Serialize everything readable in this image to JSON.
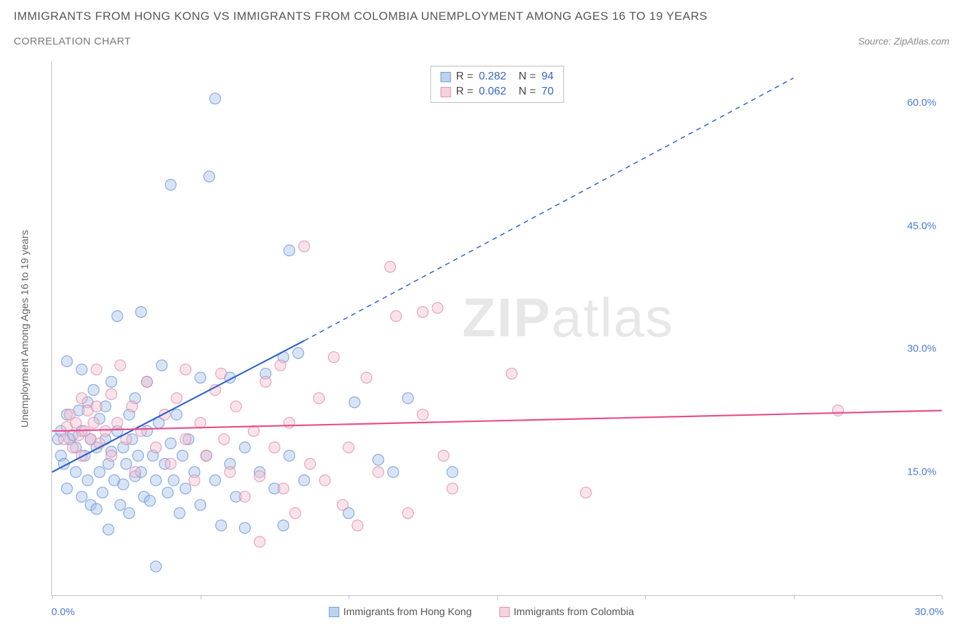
{
  "title": "IMMIGRANTS FROM HONG KONG VS IMMIGRANTS FROM COLOMBIA UNEMPLOYMENT AMONG AGES 16 TO 19 YEARS",
  "subtitle": "CORRELATION CHART",
  "source_prefix": "Source: ",
  "source_name": "ZipAtlas.com",
  "y_axis_label": "Unemployment Among Ages 16 to 19 years",
  "watermark_bold": "ZIP",
  "watermark_rest": "atlas",
  "chart": {
    "type": "scatter",
    "xlim": [
      0,
      30
    ],
    "ylim": [
      0,
      65
    ],
    "x_ticks": [
      0,
      5,
      10,
      15,
      20,
      25,
      30
    ],
    "x_tick_labels_shown": {
      "0": "0.0%",
      "30": "30.0%"
    },
    "y_ticks": [
      15,
      30,
      45,
      60
    ],
    "y_tick_labels": [
      "15.0%",
      "30.0%",
      "45.0%",
      "60.0%"
    ],
    "background_color": "#ffffff",
    "axis_color": "#bfbfbf",
    "marker_radius": 8,
    "marker_opacity": 0.45,
    "series": [
      {
        "name": "Immigrants from Hong Kong",
        "color_fill": "#a9c4ea",
        "color_stroke": "#5b8bd4",
        "swatch_fill": "#bcd2ef",
        "swatch_border": "#6f9cd9",
        "R": "0.282",
        "N": "94",
        "trend": {
          "solid": {
            "x1": 0,
            "y1": 15,
            "x2": 8.5,
            "y2": 31
          },
          "dashed": {
            "x1": 8.5,
            "y1": 31,
            "x2": 25,
            "y2": 63
          },
          "color": "#2e62c9",
          "width": 2.2
        },
        "points": [
          [
            0.2,
            19
          ],
          [
            0.3,
            20
          ],
          [
            0.3,
            17
          ],
          [
            0.4,
            16
          ],
          [
            0.5,
            22
          ],
          [
            0.5,
            13
          ],
          [
            0.5,
            28.5
          ],
          [
            0.6,
            19
          ],
          [
            0.7,
            19.5
          ],
          [
            0.8,
            18
          ],
          [
            0.8,
            15
          ],
          [
            0.9,
            22.5
          ],
          [
            1.0,
            20
          ],
          [
            1.0,
            12
          ],
          [
            1.0,
            27.5
          ],
          [
            1.1,
            17
          ],
          [
            1.2,
            23.5
          ],
          [
            1.2,
            14
          ],
          [
            1.3,
            19
          ],
          [
            1.3,
            11
          ],
          [
            1.4,
            25
          ],
          [
            1.5,
            18
          ],
          [
            1.5,
            10.5
          ],
          [
            1.6,
            15
          ],
          [
            1.6,
            21.5
          ],
          [
            1.7,
            12.5
          ],
          [
            1.8,
            23
          ],
          [
            1.8,
            19
          ],
          [
            1.9,
            16
          ],
          [
            1.9,
            8
          ],
          [
            2.0,
            26
          ],
          [
            2.0,
            17.5
          ],
          [
            2.1,
            14
          ],
          [
            2.2,
            20
          ],
          [
            2.2,
            34
          ],
          [
            2.3,
            11
          ],
          [
            2.4,
            18
          ],
          [
            2.4,
            13.5
          ],
          [
            2.5,
            16
          ],
          [
            2.6,
            22
          ],
          [
            2.6,
            10
          ],
          [
            2.7,
            19
          ],
          [
            2.8,
            14.5
          ],
          [
            2.8,
            24
          ],
          [
            2.9,
            17
          ],
          [
            3.0,
            15
          ],
          [
            3.0,
            34.5
          ],
          [
            3.1,
            12
          ],
          [
            3.2,
            20
          ],
          [
            3.2,
            26
          ],
          [
            3.3,
            11.5
          ],
          [
            3.4,
            17
          ],
          [
            3.5,
            14
          ],
          [
            3.5,
            3.5
          ],
          [
            3.6,
            21
          ],
          [
            3.7,
            28
          ],
          [
            3.8,
            16
          ],
          [
            3.9,
            12.5
          ],
          [
            4.0,
            18.5
          ],
          [
            4.0,
            50
          ],
          [
            4.1,
            14
          ],
          [
            4.2,
            22
          ],
          [
            4.3,
            10
          ],
          [
            4.4,
            17
          ],
          [
            4.5,
            13
          ],
          [
            4.6,
            19
          ],
          [
            4.8,
            15
          ],
          [
            5.0,
            26.5
          ],
          [
            5.0,
            11
          ],
          [
            5.2,
            17
          ],
          [
            5.3,
            51
          ],
          [
            5.5,
            60.5
          ],
          [
            5.5,
            14
          ],
          [
            5.7,
            8.5
          ],
          [
            6.0,
            16
          ],
          [
            6.0,
            26.5
          ],
          [
            6.2,
            12
          ],
          [
            6.5,
            18
          ],
          [
            6.5,
            8.2
          ],
          [
            7.0,
            15
          ],
          [
            7.2,
            27
          ],
          [
            7.5,
            13
          ],
          [
            7.8,
            29
          ],
          [
            7.8,
            8.5
          ],
          [
            8.0,
            17
          ],
          [
            8.0,
            42
          ],
          [
            8.3,
            29.5
          ],
          [
            8.5,
            14
          ],
          [
            10,
            10
          ],
          [
            10.2,
            23.5
          ],
          [
            11,
            16.5
          ],
          [
            11.5,
            15
          ],
          [
            12,
            24
          ],
          [
            13.5,
            15
          ]
        ]
      },
      {
        "name": "Immigrants from Colombia",
        "color_fill": "#f2c2d0",
        "color_stroke": "#e07fa0",
        "swatch_fill": "#f6d2dd",
        "swatch_border": "#e58fab",
        "R": "0.062",
        "N": "70",
        "trend": {
          "solid": {
            "x1": 0,
            "y1": 20,
            "x2": 30,
            "y2": 22.5
          },
          "color": "#e94b8a",
          "width": 2.2
        },
        "points": [
          [
            0.4,
            19
          ],
          [
            0.5,
            20.5
          ],
          [
            0.6,
            22
          ],
          [
            0.7,
            18
          ],
          [
            0.8,
            21
          ],
          [
            0.9,
            19.5
          ],
          [
            1.0,
            24
          ],
          [
            1.0,
            17
          ],
          [
            1.1,
            20
          ],
          [
            1.2,
            22.5
          ],
          [
            1.3,
            19
          ],
          [
            1.4,
            21
          ],
          [
            1.5,
            23
          ],
          [
            1.5,
            27.5
          ],
          [
            1.6,
            18.5
          ],
          [
            1.8,
            20
          ],
          [
            2.0,
            24.5
          ],
          [
            2.0,
            17
          ],
          [
            2.2,
            21
          ],
          [
            2.3,
            28
          ],
          [
            2.5,
            19
          ],
          [
            2.7,
            23
          ],
          [
            2.8,
            15
          ],
          [
            3.0,
            20
          ],
          [
            3.2,
            26
          ],
          [
            3.5,
            18
          ],
          [
            3.8,
            22
          ],
          [
            4.0,
            16
          ],
          [
            4.2,
            24
          ],
          [
            4.5,
            19
          ],
          [
            4.5,
            27.5
          ],
          [
            4.8,
            14
          ],
          [
            5.0,
            21
          ],
          [
            5.2,
            17
          ],
          [
            5.5,
            25
          ],
          [
            5.7,
            27
          ],
          [
            5.8,
            19
          ],
          [
            6.0,
            15
          ],
          [
            6.2,
            23
          ],
          [
            6.5,
            12
          ],
          [
            6.8,
            20
          ],
          [
            7.0,
            14.5
          ],
          [
            7.0,
            6.5
          ],
          [
            7.2,
            26
          ],
          [
            7.5,
            18
          ],
          [
            7.7,
            28
          ],
          [
            7.8,
            13
          ],
          [
            8.0,
            21
          ],
          [
            8.2,
            10
          ],
          [
            8.5,
            42.5
          ],
          [
            8.7,
            16
          ],
          [
            9.0,
            24
          ],
          [
            9.2,
            14
          ],
          [
            9.5,
            29
          ],
          [
            9.8,
            11
          ],
          [
            10.0,
            18
          ],
          [
            10.3,
            8.5
          ],
          [
            10.6,
            26.5
          ],
          [
            11.0,
            15
          ],
          [
            11.4,
            40
          ],
          [
            11.6,
            34
          ],
          [
            12.0,
            10
          ],
          [
            12.5,
            22
          ],
          [
            12.5,
            34.5
          ],
          [
            13.0,
            35
          ],
          [
            13.5,
            13
          ],
          [
            15.5,
            27
          ],
          [
            18.0,
            12.5
          ],
          [
            26.5,
            22.5
          ],
          [
            13.2,
            17
          ]
        ]
      }
    ]
  }
}
